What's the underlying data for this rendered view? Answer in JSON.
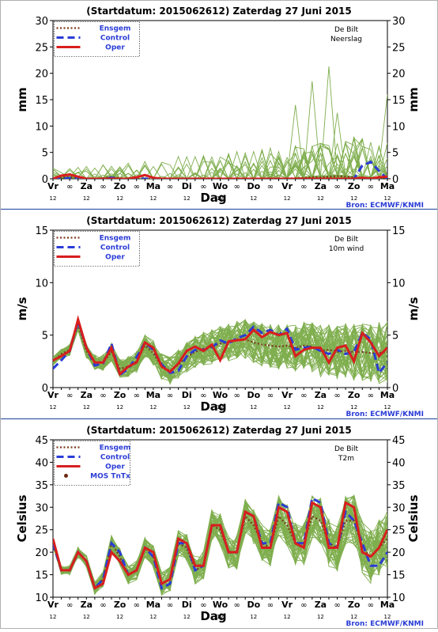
{
  "colors": {
    "ensemble": "#7fae4e",
    "ensgem": "#7a3b1e",
    "control": "#2a3cd6",
    "oper": "#d81e1e",
    "source_text": "#2a3cd6",
    "separator": "#3a5aa8",
    "dot": "#6e2a12"
  },
  "chart_data": [
    {
      "type": "line",
      "title": "(Startdatum: 2015062612)   Zaterdag  27 Juni      2015",
      "station": "De Bilt",
      "variable": "Neerslag",
      "ylabel": "mm",
      "xlabel": "Dag",
      "source": "Bron: ECMWF/KNMI",
      "ylim": [
        0,
        30
      ],
      "yticks": [
        0,
        5,
        10,
        15,
        20,
        25,
        30
      ],
      "day_labels": [
        "Vr",
        "Za",
        "Zo",
        "Ma",
        "Di",
        "Wo",
        "Do",
        "Vr",
        "Za",
        "Zo",
        "Ma"
      ],
      "legend": [
        "Ensgem",
        "Control",
        "Oper"
      ],
      "series": [
        {
          "name": "Ensgem",
          "values": [
            0,
            0.3,
            0.3,
            0.2,
            0,
            0,
            0.1,
            0.3,
            0.1,
            0,
            0,
            0,
            0,
            0,
            0,
            0,
            0,
            0,
            0,
            0,
            0,
            0,
            0,
            0,
            0,
            0,
            0,
            0,
            0.1,
            0.1,
            0.2,
            0.3,
            0.3,
            0.4,
            0.5,
            0.4,
            0.3,
            0.2,
            0.2,
            0.2,
            0.3
          ]
        },
        {
          "name": "Control",
          "values": [
            0,
            0,
            0.1,
            0.3,
            0,
            0,
            0,
            0.2,
            0,
            0,
            0,
            0,
            0,
            0,
            0,
            0,
            0,
            0,
            0,
            0,
            0,
            0,
            0,
            0,
            0,
            0,
            0,
            0,
            0,
            0,
            0,
            0,
            0,
            0,
            0,
            0,
            0,
            2.5,
            3.2,
            1.5,
            0
          ]
        },
        {
          "name": "Oper",
          "values": [
            0,
            0.6,
            0.8,
            0.4,
            0,
            0,
            0,
            0,
            0,
            0,
            0.3,
            0.7,
            0.2,
            0,
            0,
            0,
            0,
            0,
            0,
            0,
            0,
            0,
            0,
            0,
            0,
            0,
            0,
            0,
            0,
            0,
            0,
            0,
            0,
            0,
            0,
            0,
            0,
            0.2,
            0,
            0.3,
            0.4
          ]
        }
      ]
    },
    {
      "type": "line",
      "title": "(Startdatum: 2015062612)   Zaterdag  27 Juni      2015",
      "station": "De Bilt",
      "variable": "10m wind",
      "ylabel": "m/s",
      "xlabel": "Dag",
      "source": "Bron: ECMWF/KNMI",
      "ylim": [
        0,
        15
      ],
      "yticks": [
        0,
        5,
        10,
        15
      ],
      "day_labels": [
        "Vr",
        "Za",
        "Zo",
        "Ma",
        "Di",
        "Wo",
        "Do",
        "Vr",
        "Za",
        "Zo",
        "Ma"
      ],
      "legend": [
        "Ensgem",
        "Control",
        "Oper"
      ],
      "series": [
        {
          "name": "Ensgem",
          "values": [
            2.5,
            3.2,
            3.6,
            6.0,
            3.5,
            2.4,
            2.4,
            3.4,
            1.8,
            2.0,
            2.5,
            4.0,
            3.3,
            2.0,
            1.6,
            2.2,
            2.9,
            3.4,
            3.7,
            3.9,
            4.2,
            4.3,
            4.6,
            4.6,
            4.3,
            4.1,
            4.0,
            3.9,
            4.0,
            3.8,
            4.0,
            3.9,
            3.5,
            3.6,
            3.4,
            3.5,
            3.4,
            3.4,
            3.3,
            3.3,
            3.4
          ]
        },
        {
          "name": "Control",
          "values": [
            1.8,
            2.6,
            3.5,
            6.3,
            3.8,
            2.1,
            2.3,
            4.2,
            1.2,
            1.8,
            2.9,
            4.3,
            3.6,
            2.2,
            1.4,
            1.6,
            3.0,
            3.6,
            3.6,
            3.8,
            4.5,
            4.2,
            4.7,
            5.0,
            5.8,
            5.2,
            5.5,
            5.0,
            5.6,
            3.6,
            3.8,
            3.9,
            3.5,
            3.2,
            3.6,
            3.2,
            3.4,
            5.2,
            4.6,
            1.4,
            2.4
          ]
        },
        {
          "name": "Oper",
          "values": [
            2.6,
            3.0,
            3.5,
            6.5,
            3.8,
            2.4,
            2.4,
            3.8,
            1.3,
            2.0,
            2.4,
            4.3,
            3.8,
            2.0,
            1.5,
            2.3,
            3.5,
            3.9,
            3.5,
            4.1,
            2.6,
            4.4,
            4.5,
            4.6,
            5.5,
            4.8,
            5.3,
            5.0,
            5.2,
            3.0,
            3.6,
            3.8,
            3.8,
            2.4,
            3.8,
            4.0,
            2.5,
            5.2,
            4.3,
            3.0,
            3.8
          ]
        }
      ]
    },
    {
      "type": "line",
      "title": "(Startdatum: 2015062612)   Zaterdag  27 Juni      2015",
      "station": "De Bilt",
      "variable": "T2m",
      "ylabel": "Celsius",
      "xlabel": "Dag",
      "source": "Bron: ECMWF/KNMI",
      "ylim": [
        10,
        45
      ],
      "yticks": [
        10,
        15,
        20,
        25,
        30,
        35,
        40,
        45
      ],
      "day_labels": [
        "Vr",
        "Za",
        "Zo",
        "Ma",
        "Di",
        "Wo",
        "Do",
        "Vr",
        "Za",
        "Zo",
        "Ma"
      ],
      "legend": [
        "Ensgem",
        "Control",
        "Oper",
        "MOS TnTx"
      ],
      "series": [
        {
          "name": "Ensgem",
          "values": [
            22,
            16,
            16,
            20,
            18,
            12,
            14,
            22,
            19,
            15,
            16,
            21,
            19,
            13,
            14,
            22,
            21,
            16,
            17,
            26,
            25,
            20,
            20,
            28,
            26,
            22,
            21,
            28,
            26,
            22,
            22,
            28,
            27,
            22,
            21,
            27,
            27,
            21,
            19,
            21,
            23
          ]
        },
        {
          "name": "Control",
          "values": [
            22,
            16,
            16,
            20,
            18,
            12,
            14,
            22,
            20,
            15,
            16,
            21,
            19,
            12,
            13,
            22,
            22,
            16,
            17,
            26,
            26,
            20,
            20,
            29,
            28,
            22,
            22,
            31,
            30,
            22,
            22,
            32,
            31,
            22,
            21,
            29,
            27,
            22,
            17,
            17,
            20
          ]
        },
        {
          "name": "Oper",
          "values": [
            23,
            16,
            16,
            20,
            18,
            12,
            13,
            20,
            18,
            15,
            16,
            21,
            20,
            13,
            14,
            23,
            22,
            17,
            17,
            26,
            26,
            20,
            20,
            29,
            28,
            21,
            21,
            30,
            29,
            22,
            21,
            31,
            30,
            21,
            21,
            31,
            30,
            20,
            19,
            21,
            25
          ]
        }
      ]
    }
  ],
  "x_sub_labels": [
    "12",
    "∞",
    "12",
    "∞",
    "12",
    "∞",
    "12",
    "∞",
    "12",
    "∞",
    "12",
    "∞",
    "12",
    "∞",
    "12",
    "∞",
    "12",
    "∞",
    "12",
    "∞",
    "12"
  ],
  "sub_row": [
    "12",
    "12",
    "12",
    "12",
    "12",
    "12",
    "12",
    "12",
    "12",
    "12",
    "12"
  ]
}
